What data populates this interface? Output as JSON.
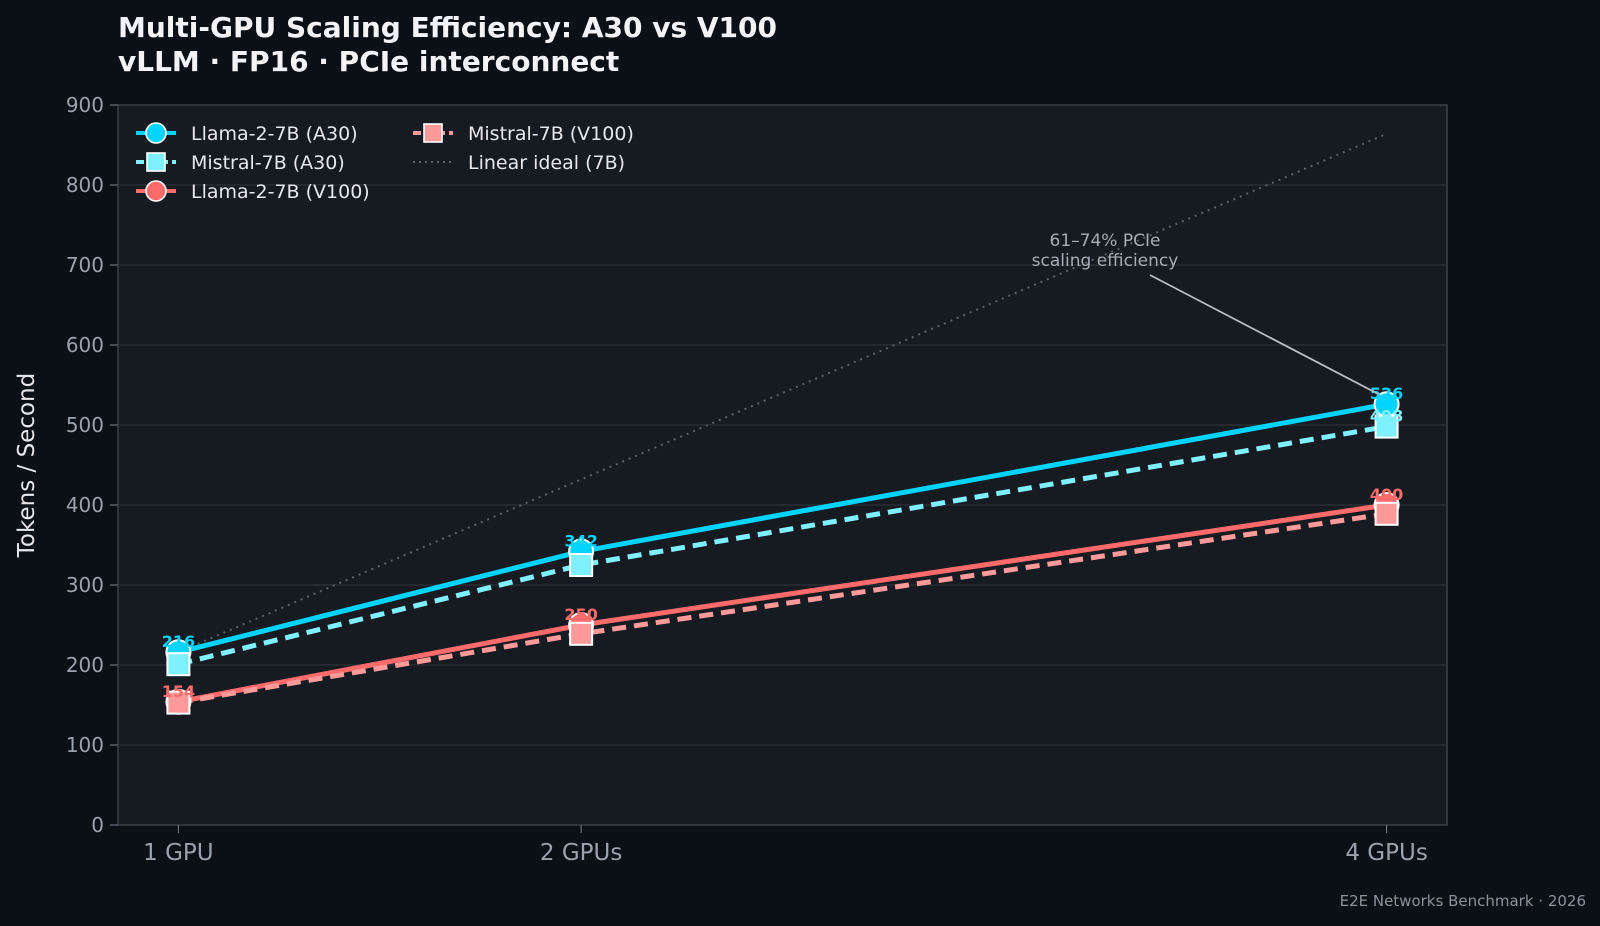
{
  "chart_data": {
    "type": "line",
    "title": "Multi-GPU Scaling Efficiency: A30 vs V100",
    "subtitle": "vLLM · FP16 · PCIe interconnect",
    "ylabel": "Tokens / Second",
    "xlabel": "",
    "categories": [
      "1 GPU",
      "2 GPUs",
      "4 GPUs"
    ],
    "x": [
      1,
      2,
      4
    ],
    "ylim": [
      0,
      900
    ],
    "yticks": [
      0,
      100,
      200,
      300,
      400,
      500,
      600,
      700,
      800,
      900
    ],
    "grid": true,
    "legend_position": "top-left",
    "series": [
      {
        "name": "Llama-2-7B (A30)",
        "values": [
          216,
          342,
          526
        ],
        "labels": [
          "216",
          "342",
          "526"
        ],
        "color": "#00d4ff",
        "line_style": "solid",
        "marker": "circle"
      },
      {
        "name": "Mistral-7B (A30)",
        "values": [
          201,
          325,
          498
        ],
        "labels": [
          "",
          "",
          "498"
        ],
        "color": "#7ef0ff",
        "line_style": "dashed",
        "marker": "square"
      },
      {
        "name": "Llama-2-7B (V100)",
        "values": [
          154,
          250,
          400
        ],
        "labels": [
          "154",
          "250",
          "400"
        ],
        "color": "#ff6b6b",
        "line_style": "solid",
        "marker": "circle"
      },
      {
        "name": "Mistral-7B (V100)",
        "values": [
          153,
          239,
          389
        ],
        "labels": [
          "",
          "",
          ""
        ],
        "color": "#ff9a9a",
        "line_style": "dashed",
        "marker": "square"
      },
      {
        "name": "Linear ideal (7B)",
        "values": [
          216,
          432,
          864
        ],
        "labels": [
          "",
          "",
          ""
        ],
        "color": "#5a6068",
        "line_style": "dotted",
        "marker": "none"
      }
    ],
    "annotation": {
      "lines": [
        "61–74% PCIe",
        "scaling efficiency"
      ],
      "x": 4,
      "y": 526
    },
    "footer": "E2E Networks Benchmark · 2026"
  }
}
